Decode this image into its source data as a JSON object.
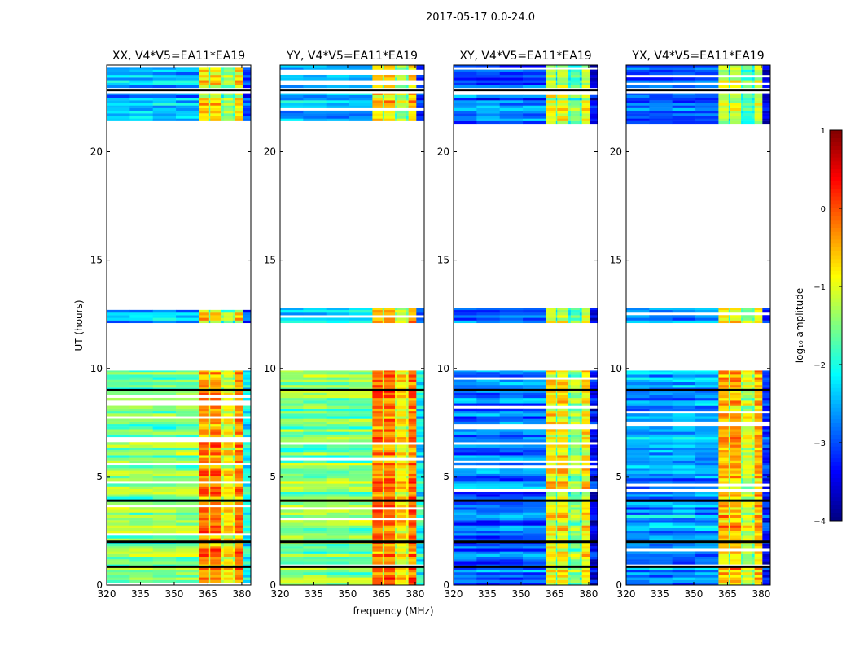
{
  "chart_data": {
    "type": "heatmap",
    "title": "2017-05-17 0.0-24.0",
    "xlabel": "frequency (MHz)",
    "ylabel": "UT (hours)",
    "xlim": [
      320,
      384
    ],
    "ylim": [
      0,
      24
    ],
    "xticks": [
      "320",
      "335",
      "350",
      "365",
      "380"
    ],
    "xtick_values": [
      320,
      335,
      350,
      365,
      380
    ],
    "yticks": [
      "0",
      "5",
      "10",
      "15",
      "20"
    ],
    "ytick_values": [
      0,
      5,
      10,
      15,
      20
    ],
    "colorbar": {
      "label": "log₁₀ amplitude",
      "range": [
        -4,
        1
      ],
      "ticks": [
        "1",
        "0",
        "−1",
        "−2",
        "−3",
        "−4"
      ],
      "tick_values": [
        1,
        0,
        -1,
        -2,
        -3,
        -4
      ],
      "colormap": "jet"
    },
    "time_segments_hours": [
      [
        0,
        9.9
      ],
      [
        12.1,
        12.8
      ],
      [
        21.3,
        22.7
      ],
      [
        22.95,
        24
      ]
    ],
    "flagged_black_hours": [
      0.85,
      2.0,
      3.9,
      9.0,
      22.85
    ],
    "rfi_columns_mhz": [
      [
        361,
        365.5
      ],
      [
        366,
        371
      ],
      [
        372,
        376
      ],
      [
        377,
        380.5
      ]
    ],
    "panels": [
      {
        "title": "XX, V4*V5=EA11*EA19",
        "background_low_hours": -1.5,
        "background_high_hours": -2.5,
        "rfi_low_hours": -0.3,
        "rfi_high_hours": -0.8
      },
      {
        "title": "YY, V4*V5=EA11*EA19",
        "background_low_hours": -1.5,
        "background_high_hours": -2.4,
        "rfi_low_hours": -0.2,
        "rfi_high_hours": -0.6
      },
      {
        "title": "XY, V4*V5=EA11*EA19",
        "background_low_hours": -2.8,
        "background_high_hours": -2.9,
        "rfi_low_hours": -0.8,
        "rfi_high_hours": -1.1
      },
      {
        "title": "YX, V4*V5=EA11*EA19",
        "background_low_hours": -2.6,
        "background_high_hours": -2.8,
        "rfi_low_hours": -0.5,
        "rfi_high_hours": -1.0
      }
    ]
  }
}
